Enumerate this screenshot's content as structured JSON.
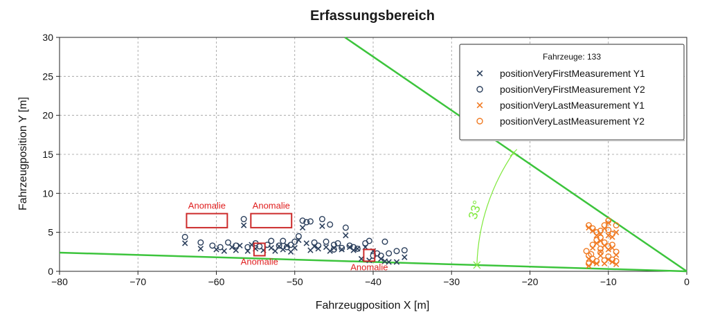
{
  "chart_data": {
    "type": "scatter",
    "title": "Erfassungsbereich",
    "xlabel": "Fahrzeugposition X [m]",
    "ylabel": "Fahrzeugposition Y [m]",
    "xlim": [
      -80,
      0
    ],
    "ylim": [
      0,
      30
    ],
    "xticks": [
      -80,
      -70,
      -60,
      -50,
      -40,
      -30,
      -20,
      -10,
      0
    ],
    "yticks": [
      0,
      5,
      10,
      15,
      20,
      25,
      30
    ],
    "grid": true,
    "legend_position": "top-right",
    "legend_title": "Fahrzeuge: 133",
    "colors": {
      "first": "#2b3f5c",
      "last": "#f07a22",
      "boundary": "#3cc43c",
      "annotation": "#cc2a2a",
      "angle": "#7ee83a"
    },
    "series": [
      {
        "name": "positionVeryFirstMeasurement Y1",
        "marker": "x",
        "color": "#2b3f5c",
        "points": [
          [
            -64,
            3.6
          ],
          [
            -62,
            2.9
          ],
          [
            -60,
            2.8
          ],
          [
            -59,
            2.6
          ],
          [
            -58,
            3.1
          ],
          [
            -57.5,
            2.7
          ],
          [
            -57,
            3.3
          ],
          [
            -56.5,
            5.9
          ],
          [
            -56,
            2.6
          ],
          [
            -55.5,
            3.4
          ],
          [
            -55,
            2.9
          ],
          [
            -54,
            2.7
          ],
          [
            -53,
            3.0
          ],
          [
            -52.5,
            2.6
          ],
          [
            -52,
            3.2
          ],
          [
            -51.5,
            2.8
          ],
          [
            -51,
            3.3
          ],
          [
            -50.5,
            2.5
          ],
          [
            -50,
            3.0
          ],
          [
            -49.5,
            4.0
          ],
          [
            -49,
            5.6
          ],
          [
            -48.5,
            3.6
          ],
          [
            -48,
            2.7
          ],
          [
            -47.5,
            3.2
          ],
          [
            -47,
            2.9
          ],
          [
            -46.5,
            5.8
          ],
          [
            -46,
            3.1
          ],
          [
            -45.5,
            2.6
          ],
          [
            -45,
            3.0
          ],
          [
            -44,
            2.8
          ],
          [
            -43.5,
            4.6
          ],
          [
            -43,
            3.1
          ],
          [
            -42.5,
            2.7
          ],
          [
            -42,
            2.9
          ],
          [
            -41.5,
            1.6
          ],
          [
            -41,
            3.1
          ],
          [
            -40.5,
            1.4
          ],
          [
            -40,
            2.6
          ],
          [
            -39,
            1.6
          ],
          [
            -38.5,
            1.3
          ],
          [
            -38,
            1.2
          ],
          [
            -37,
            1.2
          ],
          [
            -36,
            1.8
          ]
        ]
      },
      {
        "name": "positionVeryFirstMeasurement Y2",
        "marker": "o",
        "color": "#2b3f5c",
        "points": [
          [
            -64,
            4.4
          ],
          [
            -62,
            3.7
          ],
          [
            -60.5,
            3.3
          ],
          [
            -59.5,
            3.1
          ],
          [
            -58.5,
            3.7
          ],
          [
            -57.5,
            3.3
          ],
          [
            -56.5,
            6.7
          ],
          [
            -56,
            3.1
          ],
          [
            -55,
            3.6
          ],
          [
            -54.5,
            3.2
          ],
          [
            -53.5,
            3.4
          ],
          [
            -53,
            3.9
          ],
          [
            -52,
            3.3
          ],
          [
            -51.5,
            3.9
          ],
          [
            -51,
            3.1
          ],
          [
            -50.5,
            3.4
          ],
          [
            -50,
            3.8
          ],
          [
            -49.5,
            4.5
          ],
          [
            -49,
            6.5
          ],
          [
            -48.5,
            6.3
          ],
          [
            -48,
            6.4
          ],
          [
            -47.5,
            3.7
          ],
          [
            -47,
            3.3
          ],
          [
            -46.5,
            6.7
          ],
          [
            -46,
            3.8
          ],
          [
            -45.5,
            6.0
          ],
          [
            -45,
            3.4
          ],
          [
            -44.5,
            3.6
          ],
          [
            -43.5,
            5.6
          ],
          [
            -43,
            3.3
          ],
          [
            -42.5,
            3.1
          ],
          [
            -42,
            2.9
          ],
          [
            -41,
            3.6
          ],
          [
            -40.5,
            3.9
          ],
          [
            -40,
            2.0
          ],
          [
            -39.5,
            2.3
          ],
          [
            -39,
            2.0
          ],
          [
            -38.5,
            3.8
          ],
          [
            -38,
            2.3
          ],
          [
            -37,
            2.6
          ],
          [
            -36,
            2.7
          ],
          [
            -44,
            3.0
          ],
          [
            -45,
            2.8
          ]
        ]
      },
      {
        "name": "positionVeryLastMeasurement Y1",
        "marker": "x",
        "color": "#f07a22",
        "points": [
          [
            -12.5,
            5.6
          ],
          [
            -12,
            5.2
          ],
          [
            -11.5,
            4.6
          ],
          [
            -11,
            3.9
          ],
          [
            -10.5,
            3.3
          ],
          [
            -10,
            4.6
          ],
          [
            -9.5,
            4.4
          ],
          [
            -9,
            5.0
          ],
          [
            -12.5,
            1.6
          ],
          [
            -12,
            1.2
          ],
          [
            -11.5,
            1.0
          ],
          [
            -11,
            2.0
          ],
          [
            -10.5,
            1.0
          ],
          [
            -10,
            1.5
          ],
          [
            -9.5,
            1.2
          ],
          [
            -9,
            0.9
          ],
          [
            -12,
            3.0
          ],
          [
            -11,
            2.5
          ],
          [
            -10,
            2.8
          ],
          [
            -9,
            2.1
          ],
          [
            -12.5,
            0.7
          ],
          [
            -10.5,
            5.5
          ],
          [
            -11.5,
            3.6
          ],
          [
            -9.5,
            3.0
          ],
          [
            -10,
            6.2
          ],
          [
            -11,
            4.8
          ]
        ]
      },
      {
        "name": "positionVeryLastMeasurement Y2",
        "marker": "o",
        "color": "#f07a22",
        "points": [
          [
            -12.5,
            5.9
          ],
          [
            -12,
            5.5
          ],
          [
            -11.5,
            5.0
          ],
          [
            -11,
            4.3
          ],
          [
            -10.5,
            3.7
          ],
          [
            -10,
            5.3
          ],
          [
            -9.5,
            4.8
          ],
          [
            -9,
            5.9
          ],
          [
            -12.5,
            2.0
          ],
          [
            -12,
            1.6
          ],
          [
            -11.5,
            1.3
          ],
          [
            -11,
            2.4
          ],
          [
            -10.5,
            1.4
          ],
          [
            -10,
            1.9
          ],
          [
            -9.5,
            1.5
          ],
          [
            -9,
            1.3
          ],
          [
            -12,
            3.4
          ],
          [
            -11,
            2.9
          ],
          [
            -10,
            3.2
          ],
          [
            -9,
            2.5
          ],
          [
            -12.5,
            1.0
          ],
          [
            -10.5,
            5.9
          ],
          [
            -11.5,
            4.0
          ],
          [
            -9.5,
            3.4
          ],
          [
            -10,
            6.5
          ],
          [
            -11,
            5.2
          ],
          [
            -12.8,
            2.6
          ],
          [
            -12.2,
            2.2
          ]
        ]
      }
    ],
    "boundary_lines": [
      {
        "from": [
          0,
          0
        ],
        "to": [
          -43.6,
          30
        ]
      },
      {
        "from": [
          0,
          0
        ],
        "to": [
          -80,
          2.4
        ]
      }
    ],
    "angle_annotation": {
      "label": "33°",
      "vertex": [
        0,
        0
      ],
      "radius": 27
    },
    "annotations": [
      {
        "label": "Anomalie",
        "x0": -63.8,
        "x1": -58.6,
        "y0": 5.6,
        "y1": 7.4,
        "label_pos": "above"
      },
      {
        "label": "Anomalie",
        "x0": -55.6,
        "x1": -50.4,
        "y0": 5.6,
        "y1": 7.4,
        "label_pos": "above"
      },
      {
        "label": "Anomalie",
        "x0": -55.2,
        "x1": -53.8,
        "y0": 2.0,
        "y1": 3.6,
        "label_pos": "below"
      },
      {
        "label": "Anomalie",
        "x0": -41.2,
        "x1": -39.8,
        "y0": 1.3,
        "y1": 2.8,
        "label_pos": "below"
      }
    ]
  }
}
